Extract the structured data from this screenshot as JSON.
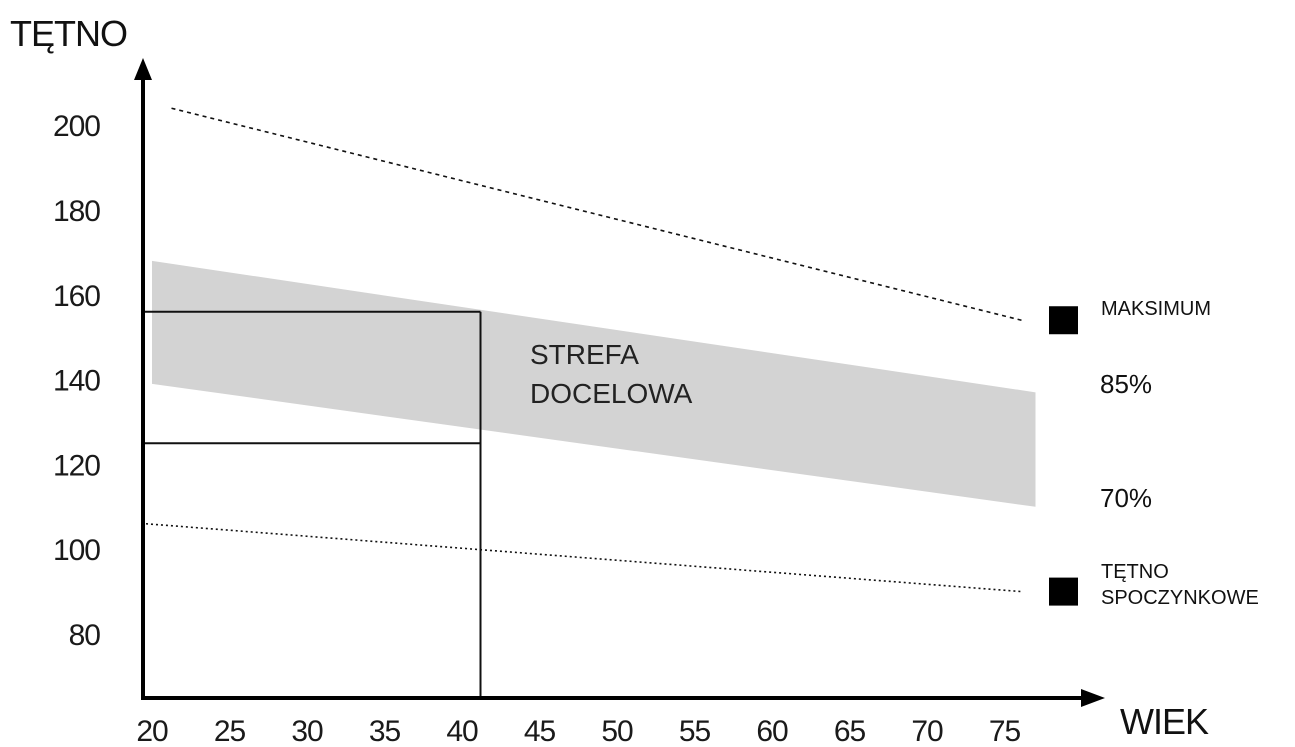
{
  "chart_data": {
    "type": "line",
    "ylabel": "TĘTNO",
    "xlabel": "WIEK",
    "x_ticks": [
      "20",
      "25",
      "30",
      "35",
      "40",
      "45",
      "50",
      "55",
      "60",
      "65",
      "70",
      "75"
    ],
    "y_ticks": [
      "80",
      "100",
      "120",
      "140",
      "160",
      "180",
      "200"
    ],
    "ylim": [
      65,
      215
    ],
    "grid": false,
    "series": [
      {
        "name": "MAKSIMUM",
        "style": "dashed",
        "marker": "square",
        "x": [
          21,
          77
        ],
        "y": [
          204,
          154
        ]
      },
      {
        "name": "TĘTNO SPOCZYNKOWE",
        "style": "dotted",
        "marker": "square",
        "x": [
          20,
          77
        ],
        "y": [
          106,
          90
        ]
      }
    ],
    "target_zone": {
      "label_line1": "STREFA",
      "label_line2": "DOCELOWA",
      "color": "#d3d3d3",
      "upper_label": "85%",
      "lower_label": "70%",
      "x": [
        20,
        77
      ],
      "upper": [
        168,
        137
      ],
      "lower": [
        139,
        110
      ]
    },
    "example_reading": {
      "age": 41,
      "upper": 156,
      "lower": 125
    }
  }
}
